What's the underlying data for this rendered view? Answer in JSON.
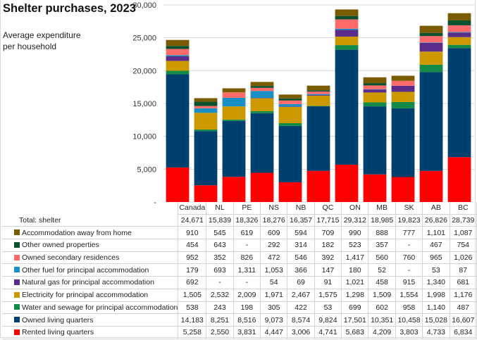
{
  "chart_data": {
    "type": "bar",
    "stacked": true,
    "title": "Shelter purchases, 2023",
    "subtitle": "Average expenditure per household",
    "xlabel": "",
    "ylabel": "",
    "ylim": [
      0,
      30000
    ],
    "yticks": [
      0,
      5000,
      10000,
      15000,
      20000,
      25000,
      30000
    ],
    "ytick_labels": [
      "-",
      "5,000",
      "10,000",
      "15,000",
      "20,000",
      "25,000",
      "30,000"
    ],
    "grid": true,
    "legend": "table-below",
    "categories": [
      "Canada",
      "NL",
      "PE",
      "NS",
      "NB",
      "QC",
      "ON",
      "MB",
      "SK",
      "AB",
      "BC"
    ],
    "total_label": "Total: shelter",
    "totals": [
      "24,671",
      "15,839",
      "18,326",
      "18,276",
      "16,357",
      "17,715",
      "29,312",
      "18,985",
      "19,823",
      "26,826",
      "28,739"
    ],
    "series": [
      {
        "name": "Rented living quarters",
        "color": "#ff0000",
        "values": [
          5258,
          2550,
          3831,
          4447,
          3006,
          4741,
          5683,
          4209,
          3803,
          4733,
          6834
        ],
        "labels": [
          "5,258",
          "2,550",
          "3,831",
          "4,447",
          "3,006",
          "4,741",
          "5,683",
          "4,209",
          "3,803",
          "4,733",
          "6,834"
        ]
      },
      {
        "name": "Owned living quarters",
        "color": "#003f6e",
        "values": [
          14183,
          8251,
          8516,
          9073,
          8574,
          9824,
          17501,
          10351,
          10458,
          15028,
          16607
        ],
        "labels": [
          "14,183",
          "8,251",
          "8,516",
          "9,073",
          "8,574",
          "9,824",
          "17,501",
          "10,351",
          "10,458",
          "15,028",
          "16,607"
        ]
      },
      {
        "name": "Water and sewage for principal accommodation",
        "color": "#138a47",
        "values": [
          538,
          243,
          198,
          305,
          422,
          53,
          699,
          602,
          958,
          1140,
          487
        ],
        "labels": [
          "538",
          "243",
          "198",
          "305",
          "422",
          "53",
          "699",
          "602",
          "958",
          "1,140",
          "487"
        ]
      },
      {
        "name": "Electricity for principal accommodation",
        "color": "#cc9a00",
        "values": [
          1505,
          2532,
          2009,
          1971,
          2467,
          1575,
          1298,
          1509,
          1554,
          1998,
          1176
        ],
        "labels": [
          "1,505",
          "2,532",
          "2,009",
          "1,971",
          "2,467",
          "1,575",
          "1,298",
          "1,509",
          "1,554",
          "1,998",
          "1,176"
        ]
      },
      {
        "name": "Natural gas for principal accommodation",
        "color": "#5a2d8a",
        "values": [
          692,
          0,
          0,
          54,
          69,
          91,
          1021,
          458,
          915,
          1340,
          681
        ],
        "labels": [
          "692",
          "-",
          "-",
          "54",
          "69",
          "91",
          "1,021",
          "458",
          "915",
          "1,340",
          "681"
        ]
      },
      {
        "name": "Other fuel for principal accommodation",
        "color": "#1a8fc4",
        "values": [
          179,
          693,
          1311,
          1053,
          366,
          147,
          180,
          52,
          0,
          53,
          87
        ],
        "labels": [
          "179",
          "693",
          "1,311",
          "1,053",
          "366",
          "147",
          "180",
          "52",
          "-",
          "53",
          "87"
        ]
      },
      {
        "name": "Owned secondary residences",
        "color": "#ff6b6b",
        "values": [
          952,
          352,
          826,
          472,
          546,
          392,
          1417,
          560,
          760,
          965,
          1026
        ],
        "labels": [
          "952",
          "352",
          "826",
          "472",
          "546",
          "392",
          "1,417",
          "560",
          "760",
          "965",
          "1,026"
        ]
      },
      {
        "name": "Other owned properties",
        "color": "#0b5130",
        "values": [
          454,
          643,
          0,
          292,
          314,
          182,
          523,
          357,
          0,
          467,
          754
        ],
        "labels": [
          "454",
          "643",
          "-",
          "292",
          "314",
          "182",
          "523",
          "357",
          "-",
          "467",
          "754"
        ]
      },
      {
        "name": "Accommodation away from home",
        "color": "#7a5c00",
        "values": [
          910,
          545,
          619,
          609,
          594,
          709,
          990,
          888,
          777,
          1101,
          1087
        ],
        "labels": [
          "910",
          "545",
          "619",
          "609",
          "594",
          "709",
          "990",
          "888",
          "777",
          "1,101",
          "1,087"
        ]
      }
    ]
  }
}
